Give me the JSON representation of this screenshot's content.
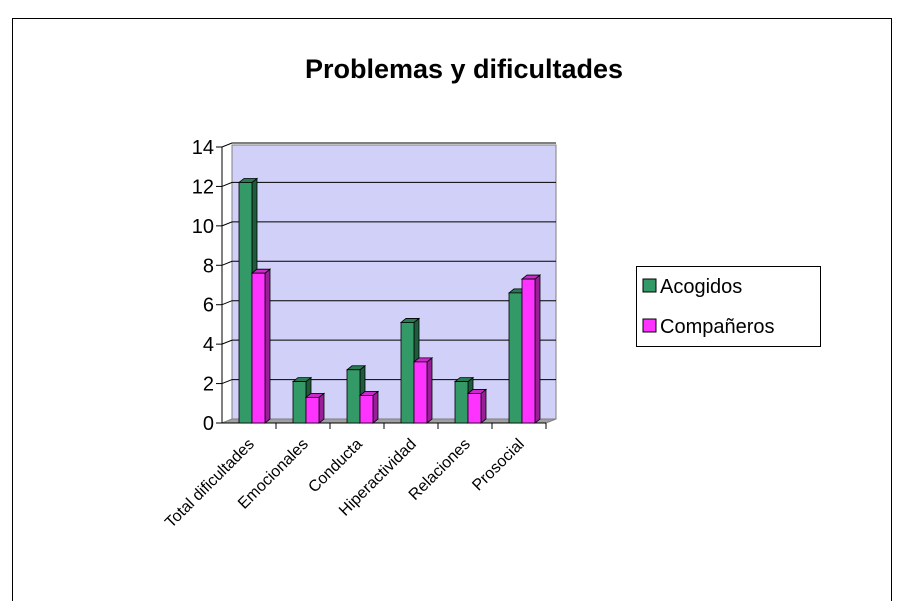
{
  "chart_data": {
    "type": "bar",
    "title": "Problemas y dificultades",
    "categories": [
      "Total dificultades",
      "Emocionales",
      "Conducta",
      "Hiperactividad",
      "Relaciones",
      "Prosocial"
    ],
    "series": [
      {
        "name": "Acogidos",
        "color": "#339966",
        "values": [
          12.2,
          2.1,
          2.7,
          5.1,
          2.1,
          6.6
        ]
      },
      {
        "name": "Compañeros",
        "color": "#ff33ff",
        "values": [
          7.6,
          1.3,
          1.4,
          3.1,
          1.5,
          7.3
        ]
      }
    ],
    "ylim": [
      0,
      14
    ],
    "yticks": [
      0,
      2,
      4,
      6,
      8,
      10,
      12,
      14
    ],
    "grid": true,
    "legend": "right"
  }
}
